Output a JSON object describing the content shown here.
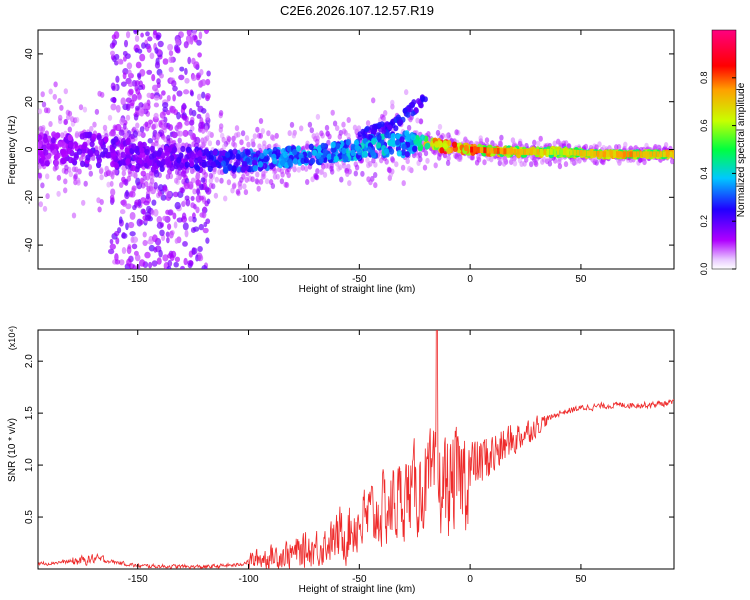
{
  "title": "C2E6.2026.107.12.57.R19",
  "chart_data": [
    {
      "type": "heatmap",
      "name": "spectrogram",
      "xlabel": "Height of straight line (km)",
      "ylabel": "Frequency (Hz)",
      "xlim": [
        -195,
        92
      ],
      "ylim": [
        -50,
        50
      ],
      "xticks": [
        -150,
        -100,
        -50,
        0,
        50
      ],
      "yticks": [
        -40,
        -20,
        0,
        20,
        40
      ],
      "colorbar": {
        "label": "Normalized spectral amplitude",
        "range": [
          0,
          1
        ],
        "ticks": [
          0.0,
          0.2,
          0.4,
          0.6,
          0.8
        ],
        "tick_labels": [
          "0.0",
          "0.2",
          "0.4",
          "0.6",
          "0.8"
        ],
        "colormap": [
          "#ffffff",
          "#b000ff",
          "#2000ff",
          "#00c8ff",
          "#00ff40",
          "#c8ff00",
          "#ffa000",
          "#ff0000",
          "#ff0080"
        ]
      },
      "ridge": {
        "x": [
          -195,
          -170,
          -150,
          -130,
          -110,
          -90,
          -70,
          -50,
          -40,
          -30,
          -25,
          -20,
          -10,
          0,
          20,
          40,
          60,
          92
        ],
        "freq": [
          0,
          0,
          -3,
          -4,
          -5,
          -4,
          -2,
          0,
          2,
          2,
          3,
          3,
          1,
          0,
          -1,
          -1,
          -2,
          -2
        ],
        "amplitude": [
          0.15,
          0.2,
          0.2,
          0.22,
          0.3,
          0.35,
          0.4,
          0.4,
          0.42,
          0.35,
          0.4,
          0.7,
          0.9,
          0.85,
          0.75,
          0.65,
          0.75,
          0.75
        ],
        "spread_hz": [
          14,
          14,
          12,
          10,
          9,
          8,
          8,
          8,
          10,
          12,
          8,
          5,
          4,
          3,
          3,
          3,
          2,
          2
        ]
      },
      "scatter_band": {
        "x_range": [
          -162,
          -118
        ],
        "freq_range": [
          -50,
          50
        ]
      },
      "up_branch": {
        "x": [
          -50,
          -35,
          -25,
          -20
        ],
        "freq": [
          5,
          10,
          18,
          22
        ]
      }
    },
    {
      "type": "line",
      "name": "snr",
      "xlabel": "Height of straight line (km)",
      "ylabel": "SNR (10 * v/v)",
      "y_multiplier": "(x10⁴)",
      "xlim": [
        -195,
        92
      ],
      "ylim": [
        0,
        2.3
      ],
      "xticks": [
        -150,
        -100,
        -50,
        0,
        50
      ],
      "yticks": [
        0.5,
        1.0,
        1.5,
        2.0
      ],
      "ytick_labels": [
        "0.5",
        "1.0",
        "1.5",
        "2.0"
      ],
      "color": "#ee2a2a",
      "trend": {
        "x": [
          -195,
          -175,
          -170,
          -150,
          -120,
          -105,
          -95,
          -80,
          -70,
          -60,
          -50,
          -40,
          -30,
          -20,
          -15,
          -10,
          -5,
          0,
          10,
          20,
          30,
          40,
          50,
          60,
          70,
          80,
          92
        ],
        "y": [
          0.05,
          0.08,
          0.1,
          0.03,
          0.02,
          0.04,
          0.1,
          0.15,
          0.2,
          0.3,
          0.45,
          0.55,
          0.7,
          0.8,
          0.8,
          0.8,
          0.85,
          0.95,
          1.1,
          1.25,
          1.38,
          1.5,
          1.55,
          1.57,
          1.58,
          1.58,
          1.6
        ]
      },
      "peak": {
        "x": -15,
        "y": 2.3
      }
    }
  ]
}
